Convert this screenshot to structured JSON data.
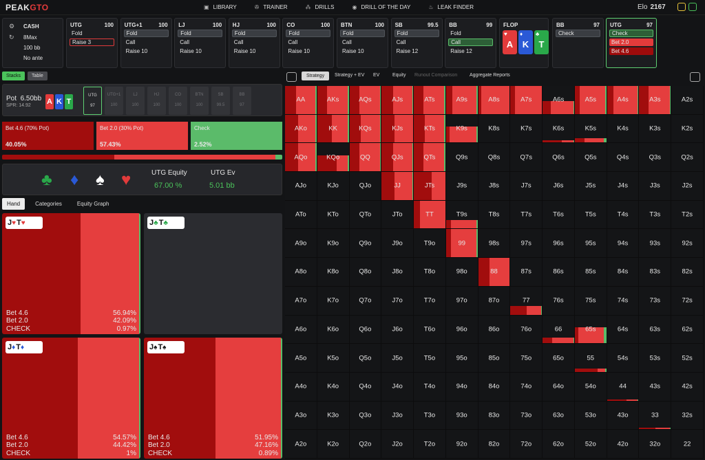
{
  "brand": {
    "name_a": "PEAK",
    "name_b": "GTO"
  },
  "nav": [
    {
      "icon": "library-icon",
      "glyph": "▣",
      "label": "LIBRARY"
    },
    {
      "icon": "trainer-icon",
      "glyph": "✇",
      "label": "TRAINER"
    },
    {
      "icon": "drills-icon",
      "glyph": "⁂",
      "label": "DRILLS"
    },
    {
      "icon": "target-icon",
      "glyph": "◉",
      "label": "DRILL OF THE DAY"
    },
    {
      "icon": "flame-icon",
      "glyph": "♨",
      "label": "LEAK FINDER"
    }
  ],
  "elo": {
    "label": "Elo",
    "value": "2167"
  },
  "stack_card": {
    "game": "CASH",
    "table": "8Max",
    "stack": "100 bb",
    "ante": "No ante"
  },
  "positions": [
    {
      "name": "UTG",
      "stack": "100",
      "actions": [
        "Fold",
        "Raise 3"
      ],
      "styles": [
        "",
        "raise"
      ]
    },
    {
      "name": "UTG+1",
      "stack": "100",
      "actions": [
        "Fold",
        "Call",
        "Raise 10"
      ],
      "styles": [
        "sel",
        "",
        ""
      ]
    },
    {
      "name": "LJ",
      "stack": "100",
      "actions": [
        "Fold",
        "Call",
        "Raise 10"
      ],
      "styles": [
        "sel",
        "",
        ""
      ]
    },
    {
      "name": "HJ",
      "stack": "100",
      "actions": [
        "Fold",
        "Call",
        "Raise 10"
      ],
      "styles": [
        "sel",
        "",
        ""
      ]
    },
    {
      "name": "CO",
      "stack": "100",
      "actions": [
        "Fold",
        "Call",
        "Raise 10"
      ],
      "styles": [
        "sel",
        "",
        ""
      ]
    },
    {
      "name": "BTN",
      "stack": "100",
      "actions": [
        "Fold",
        "Call",
        "Raise 10"
      ],
      "styles": [
        "sel",
        "",
        ""
      ]
    },
    {
      "name": "SB",
      "stack": "99.5",
      "actions": [
        "Fold",
        "Call",
        "Raise 12"
      ],
      "styles": [
        "sel",
        "",
        ""
      ]
    },
    {
      "name": "BB",
      "stack": "99",
      "actions": [
        "Fold",
        "Call",
        "Raise 12"
      ],
      "styles": [
        "",
        "green",
        ""
      ]
    }
  ],
  "flop": {
    "label": "FLOP",
    "cards": [
      {
        "rank": "A",
        "suit": "♥",
        "color": "#e23b3b"
      },
      {
        "rank": "K",
        "suit": "♦",
        "color": "#2a59d6"
      },
      {
        "rank": "T",
        "suit": "♣",
        "color": "#2aa84a"
      }
    ]
  },
  "bb_card": {
    "name": "BB",
    "stack": "97",
    "action": "Check"
  },
  "utg_card": {
    "name": "UTG",
    "stack": "97",
    "actions": [
      "Check",
      "Bet 2.0",
      "Bet 4.6"
    ]
  },
  "view_toggle": {
    "a": "Stacks",
    "b": "Table"
  },
  "pot": {
    "label": "Pot",
    "value": "6.50bb",
    "spr": "SPR: 14.92",
    "board": [
      {
        "rank": "A",
        "color": "#e23b3b"
      },
      {
        "rank": "K",
        "color": "#2a59d6"
      },
      {
        "rank": "T",
        "color": "#2aa84a"
      }
    ],
    "players": [
      {
        "n": "UTG",
        "s": "97"
      },
      {
        "n": "UTG+1",
        "s": "100"
      },
      {
        "n": "LJ",
        "s": "100"
      },
      {
        "n": "HJ",
        "s": "100"
      },
      {
        "n": "CO",
        "s": "100"
      },
      {
        "n": "BTN",
        "s": "100"
      },
      {
        "n": "SB",
        "s": "99.5"
      },
      {
        "n": "BB",
        "s": "97"
      }
    ]
  },
  "actions": [
    {
      "label": "Bet 4.6 (70% Pot)",
      "pct": "40.05%",
      "frac": 0.4005,
      "color": "#a10d0d"
    },
    {
      "label": "Bet 2.0 (30% Pot)",
      "pct": "57.43%",
      "frac": 0.5743,
      "color": "#e53e3e"
    },
    {
      "label": "Check",
      "pct": "2.52%",
      "frac": 0.0252,
      "color": "#5bbb6a"
    }
  ],
  "equity": {
    "eq_label": "UTG Equity",
    "eq_value": "67.00 %",
    "ev_label": "UTG Ev",
    "ev_value": "5.01 bb"
  },
  "left_tabs": [
    "Hand",
    "Categories",
    "Equity Graph"
  ],
  "hand_cells": [
    {
      "hand": "J♥T♥",
      "r1": "J",
      "s1": "♥",
      "r2": "T",
      "s2": "♥",
      "sc": "#e23b3b",
      "rows": [
        [
          "Bet 4.6",
          "56.94%"
        ],
        [
          "Bet 2.0",
          "42.09%"
        ],
        [
          "CHECK",
          "0.97%"
        ]
      ],
      "b46": 0.5694,
      "b20": 0.4209
    },
    {
      "hand": "J♣T♣",
      "r1": "J",
      "s1": "♣",
      "r2": "T",
      "s2": "♣",
      "sc": "#2aa84a",
      "rows": [],
      "b46": 0,
      "b20": 0
    },
    {
      "hand": "J♦T♦",
      "r1": "J",
      "s1": "♦",
      "r2": "T",
      "s2": "♦",
      "sc": "#2a59d6",
      "rows": [
        [
          "Bet 4.6",
          "54.57%"
        ],
        [
          "Bet 2.0",
          "44.42%"
        ],
        [
          "CHECK",
          "1%"
        ]
      ],
      "b46": 0.5457,
      "b20": 0.4442
    },
    {
      "hand": "J♠T♠",
      "r1": "J",
      "s1": "♠",
      "r2": "T",
      "s2": "♠",
      "sc": "#111111",
      "rows": [
        [
          "Bet 4.6",
          "51.95%"
        ],
        [
          "Bet 2.0",
          "47.16%"
        ],
        [
          "CHECK",
          "0.89%"
        ]
      ],
      "b46": 0.5195,
      "b20": 0.4716
    }
  ],
  "right_tabs": [
    "Strategy",
    "Strategy + EV",
    "EV",
    "Equity",
    "Runout Comparison",
    "Aggregate Reports"
  ],
  "ranks": [
    "A",
    "K",
    "Q",
    "J",
    "T",
    "9",
    "8",
    "7",
    "6",
    "5",
    "4",
    "3",
    "2"
  ],
  "range_freq": {
    "AA": [
      1,
      0.35,
      0.6,
      0.03
    ],
    "AKs": [
      1,
      0.3,
      0.65,
      0.05
    ],
    "AQs": [
      1,
      0.3,
      0.65,
      0.05
    ],
    "AJs": [
      1,
      0.35,
      0.6,
      0.05
    ],
    "ATs": [
      1,
      0.3,
      0.65,
      0.05
    ],
    "A9s": [
      1,
      0.2,
      0.75,
      0.05
    ],
    "A8s": [
      1,
      0.1,
      0.88,
      0.02
    ],
    "A7s": [
      1,
      0.15,
      0.82,
      0.03
    ],
    "A6s": [
      0.45,
      0.25,
      0.7,
      0.05
    ],
    "A5s": [
      1,
      0.15,
      0.8,
      0.05
    ],
    "A4s": [
      1,
      0.2,
      0.75,
      0.05
    ],
    "A3s": [
      1,
      0.3,
      0.65,
      0.05
    ],
    "AKo": [
      1,
      0.4,
      0.55,
      0.05
    ],
    "KK": [
      1,
      0.45,
      0.5,
      0.05
    ],
    "KQs": [
      1,
      0.35,
      0.6,
      0.05
    ],
    "KJs": [
      1,
      0.4,
      0.58,
      0.02
    ],
    "KTs": [
      1,
      0.35,
      0.6,
      0.05
    ],
    "K9s": [
      0.55,
      0.1,
      0.85,
      0.05
    ],
    "K6s": [
      0.08,
      0.6,
      0.35,
      0.05
    ],
    "K5s": [
      0.15,
      0.3,
      0.6,
      0.1
    ],
    "AQo": [
      1,
      0.4,
      0.55,
      0.05
    ],
    "KQo": [
      0.55,
      0.6,
      0.35,
      0.05
    ],
    "QQ": [
      1,
      0.3,
      0.65,
      0.05
    ],
    "QJs": [
      1,
      0.35,
      0.6,
      0.05
    ],
    "QTs": [
      1,
      0.3,
      0.65,
      0.05
    ],
    "JJ": [
      1,
      0.4,
      0.55,
      0.05
    ],
    "JTs": [
      1,
      0.55,
      0.43,
      0.02
    ],
    "TT": [
      1,
      0.2,
      0.78,
      0.02
    ],
    "T9s": [
      0.3,
      0.15,
      0.8,
      0.05
    ],
    "99": [
      1,
      0.15,
      0.8,
      0.05
    ],
    "88": [
      1,
      0.35,
      0.63,
      0.02
    ],
    "77": [
      0.3,
      0.5,
      0.45,
      0.05
    ],
    "66": [
      0.2,
      0.3,
      0.65,
      0.05
    ],
    "65s": [
      0.55,
      0.1,
      0.8,
      0.1
    ],
    "55": [
      0.12,
      0.7,
      0.25,
      0.05
    ],
    "44": [
      0.05,
      0.6,
      0.35,
      0.05
    ],
    "33": [
      0.05,
      0.5,
      0.45,
      0.05
    ]
  },
  "colors": {
    "bet46": "#a10d0d",
    "bet20": "#e53e3e",
    "check": "#5bbb6a",
    "accent": "#5fd173"
  }
}
